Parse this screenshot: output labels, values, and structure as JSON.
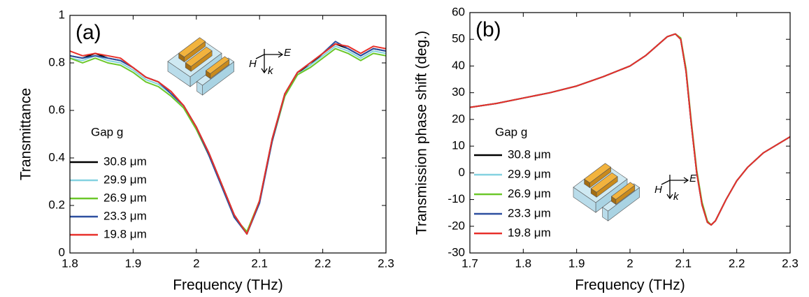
{
  "chart_data": [
    {
      "type": "line",
      "panel_label": "(a)",
      "x_label": "Frequency (THz)",
      "y_label": "Transmittance",
      "xlim": [
        1.8,
        2.3
      ],
      "xticks": [
        1.8,
        1.9,
        2,
        2.1,
        2.2,
        2.3
      ],
      "ylim": [
        0,
        1
      ],
      "yticks": [
        0,
        0.2,
        0.4,
        0.6,
        0.8,
        1
      ],
      "legend_title": "Gap g",
      "inset_labels": [
        "E",
        "H",
        "k"
      ],
      "x": [
        1.8,
        1.82,
        1.84,
        1.86,
        1.88,
        1.9,
        1.92,
        1.94,
        1.96,
        1.98,
        2.0,
        2.02,
        2.04,
        2.06,
        2.08,
        2.1,
        2.12,
        2.14,
        2.16,
        2.18,
        2.2,
        2.22,
        2.24,
        2.26,
        2.28,
        2.3
      ],
      "series": [
        {
          "name": "30.8 μm",
          "color": "#000000",
          "values": [
            0.83,
            0.82,
            0.84,
            0.82,
            0.81,
            0.78,
            0.74,
            0.72,
            0.67,
            0.62,
            0.53,
            0.42,
            0.29,
            0.16,
            0.08,
            0.22,
            0.48,
            0.67,
            0.76,
            0.79,
            0.84,
            0.88,
            0.86,
            0.83,
            0.86,
            0.85
          ]
        },
        {
          "name": "29.9 μm",
          "color": "#84d2e0",
          "values": [
            0.82,
            0.81,
            0.83,
            0.81,
            0.8,
            0.77,
            0.73,
            0.71,
            0.67,
            0.61,
            0.52,
            0.41,
            0.28,
            0.15,
            0.08,
            0.21,
            0.47,
            0.66,
            0.75,
            0.79,
            0.83,
            0.87,
            0.85,
            0.82,
            0.85,
            0.84
          ]
        },
        {
          "name": "26.9 μm",
          "color": "#6cc72a",
          "values": [
            0.82,
            0.8,
            0.82,
            0.8,
            0.79,
            0.76,
            0.72,
            0.7,
            0.66,
            0.61,
            0.52,
            0.41,
            0.29,
            0.15,
            0.09,
            0.22,
            0.47,
            0.66,
            0.75,
            0.78,
            0.82,
            0.86,
            0.84,
            0.81,
            0.84,
            0.83
          ]
        },
        {
          "name": "23.3 μm",
          "color": "#2d4fa0",
          "values": [
            0.83,
            0.82,
            0.83,
            0.82,
            0.81,
            0.78,
            0.74,
            0.72,
            0.67,
            0.62,
            0.53,
            0.41,
            0.28,
            0.15,
            0.08,
            0.21,
            0.47,
            0.67,
            0.76,
            0.8,
            0.84,
            0.89,
            0.86,
            0.83,
            0.86,
            0.85
          ]
        },
        {
          "name": "19.8 μm",
          "color": "#e8302a",
          "values": [
            0.85,
            0.83,
            0.84,
            0.83,
            0.82,
            0.78,
            0.74,
            0.72,
            0.68,
            0.62,
            0.53,
            0.42,
            0.29,
            0.16,
            0.08,
            0.22,
            0.48,
            0.67,
            0.76,
            0.8,
            0.84,
            0.88,
            0.87,
            0.84,
            0.87,
            0.86
          ]
        }
      ]
    },
    {
      "type": "line",
      "panel_label": "(b)",
      "x_label": "Frequency (THz)",
      "y_label": "Transmission phase shift (deg.)",
      "xlim": [
        1.7,
        2.3
      ],
      "xticks": [
        1.7,
        1.8,
        1.9,
        2,
        2.1,
        2.2,
        2.3
      ],
      "ylim": [
        -30,
        60
      ],
      "yticks": [
        -30,
        -20,
        -10,
        0,
        10,
        20,
        30,
        40,
        50,
        60
      ],
      "legend_title": "Gap g",
      "inset_labels": [
        "E",
        "H",
        "k"
      ],
      "x": [
        1.7,
        1.75,
        1.8,
        1.85,
        1.9,
        1.95,
        2.0,
        2.03,
        2.05,
        2.07,
        2.085,
        2.095,
        2.105,
        2.115,
        2.125,
        2.135,
        2.145,
        2.152,
        2.16,
        2.18,
        2.2,
        2.22,
        2.25,
        2.3
      ],
      "series": [
        {
          "name": "30.8 μm",
          "color": "#000000",
          "values": [
            24.5,
            26,
            28,
            30,
            32.5,
            36,
            40,
            44,
            47.5,
            51,
            52,
            50,
            38,
            18,
            0,
            -12,
            -18.5,
            -19.5,
            -18,
            -10,
            -3,
            2,
            7.5,
            13.5
          ]
        },
        {
          "name": "29.9 μm",
          "color": "#84d2e0",
          "values": [
            24.5,
            26,
            28,
            30,
            32.5,
            36,
            40,
            44,
            47.5,
            51,
            52,
            50,
            38,
            18,
            0,
            -12,
            -18.5,
            -19.5,
            -18,
            -10,
            -3,
            2,
            7.5,
            13.5
          ]
        },
        {
          "name": "26.9 μm",
          "color": "#6cc72a",
          "values": [
            24.5,
            26,
            28,
            30,
            32.5,
            36,
            40,
            44,
            47.5,
            51,
            52,
            50.5,
            39,
            19,
            1,
            -11,
            -18,
            -19.5,
            -18,
            -10,
            -3,
            2,
            7.5,
            13.5
          ]
        },
        {
          "name": "23.3 μm",
          "color": "#2d4fa0",
          "values": [
            24.5,
            26,
            28,
            30,
            32.5,
            36,
            40,
            44,
            47.5,
            51,
            52,
            50,
            38,
            18,
            0,
            -12,
            -18.5,
            -19.5,
            -18,
            -10,
            -3,
            2,
            7.5,
            13.5
          ]
        },
        {
          "name": "19.8 μm",
          "color": "#e8302a",
          "values": [
            24.5,
            26,
            28,
            30,
            32.5,
            36,
            40,
            44,
            47.5,
            51,
            52,
            50,
            38,
            18,
            0,
            -12,
            -18.5,
            -19.5,
            -18,
            -10,
            -3,
            2,
            7.5,
            13.5
          ]
        }
      ]
    }
  ]
}
